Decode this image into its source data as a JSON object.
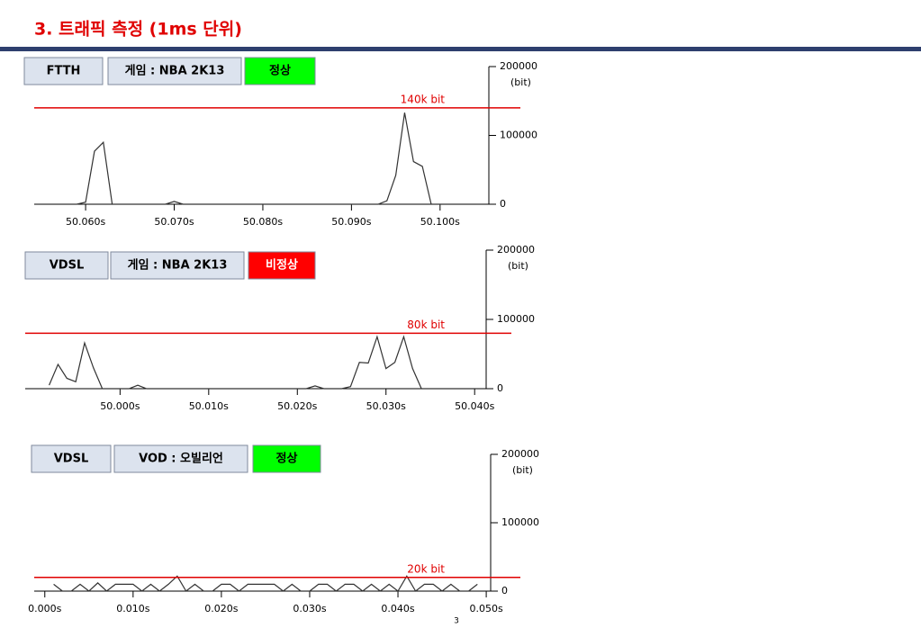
{
  "title": "3. 트래픽 측정 (1ms 단위)",
  "page_number": "3",
  "chart_data": [
    {
      "type": "line",
      "tags": [
        {
          "text": "FTTH",
          "color": "#dce3ee"
        },
        {
          "text": "게임 : NBA 2K13",
          "color": "#dce3ee"
        },
        {
          "text": "정상",
          "color": "#00ff00",
          "text_color": "#000000"
        }
      ],
      "y_label": "(bit)",
      "ylim": [
        0,
        200000
      ],
      "yticks": [
        0,
        100000,
        200000
      ],
      "xlim": [
        50.0542,
        50.1052
      ],
      "xticks": [
        {
          "value": 50.06,
          "label": "50.060s"
        },
        {
          "value": 50.07,
          "label": "50.070s"
        },
        {
          "value": 50.08,
          "label": "50.080s"
        },
        {
          "value": 50.09,
          "label": "50.090s"
        },
        {
          "value": 50.1,
          "label": "50.100s"
        }
      ],
      "threshold": {
        "value": 140000,
        "label": "140k bit",
        "color": "#e00000"
      },
      "series": [
        {
          "color": "#333333",
          "x": [
            50.055,
            50.056,
            50.057,
            50.058,
            50.059,
            50.06,
            50.061,
            50.062,
            50.063,
            50.064,
            50.065,
            50.066,
            50.067,
            50.068,
            50.069,
            50.07,
            50.071,
            50.072,
            50.073,
            50.074,
            50.075,
            50.076,
            50.077,
            50.078,
            50.079,
            50.08,
            50.081,
            50.082,
            50.083,
            50.084,
            50.085,
            50.086,
            50.087,
            50.088,
            50.089,
            50.09,
            50.091,
            50.092,
            50.093,
            50.094,
            50.095,
            50.096,
            50.097,
            50.098,
            50.099,
            50.1,
            50.101,
            50.102,
            50.103,
            50.104
          ],
          "values": [
            0,
            0,
            0,
            0,
            0,
            3000,
            77000,
            90000,
            0,
            0,
            0,
            0,
            0,
            0,
            0,
            4000,
            0,
            0,
            0,
            0,
            0,
            0,
            0,
            0,
            0,
            0,
            0,
            0,
            0,
            0,
            0,
            0,
            0,
            0,
            0,
            0,
            0,
            0,
            0,
            5000,
            42000,
            133000,
            62000,
            55000,
            0,
            0,
            0,
            0,
            0,
            0
          ]
        }
      ]
    },
    {
      "type": "line",
      "tags": [
        {
          "text": "VDSL",
          "color": "#dce3ee"
        },
        {
          "text": "게임 : NBA 2K13",
          "color": "#dce3ee"
        },
        {
          "text": "비정상",
          "color": "#ff0000",
          "text_color": "#ffffff"
        }
      ],
      "y_label": "(bit)",
      "ylim": [
        0,
        200000
      ],
      "yticks": [
        0,
        100000,
        200000
      ],
      "xlim": [
        49.9893,
        50.0413
      ],
      "xticks": [
        {
          "value": 50.0,
          "label": "50.000s"
        },
        {
          "value": 50.01,
          "label": "50.010s"
        },
        {
          "value": 50.02,
          "label": "50.020s"
        },
        {
          "value": 50.03,
          "label": "50.030s"
        },
        {
          "value": 50.04,
          "label": "50.040s"
        }
      ],
      "threshold": {
        "value": 80000,
        "label": "80k bit",
        "color": "#e00000"
      },
      "series": [
        {
          "color": "#333333",
          "x": [
            49.992,
            49.993,
            49.994,
            49.995,
            49.996,
            49.997,
            49.998,
            49.999,
            50.0,
            50.001,
            50.002,
            50.003,
            50.004,
            50.005,
            50.006,
            50.007,
            50.008,
            50.009,
            50.01,
            50.011,
            50.012,
            50.013,
            50.014,
            50.015,
            50.016,
            50.017,
            50.018,
            50.019,
            50.02,
            50.021,
            50.022,
            50.023,
            50.024,
            50.025,
            50.026,
            50.027,
            50.028,
            50.029,
            50.03,
            50.031,
            50.032,
            50.033,
            50.034,
            50.035,
            50.036,
            50.037,
            50.038,
            50.039,
            50.04
          ],
          "values": [
            5000,
            35000,
            15000,
            10000,
            66000,
            30000,
            0,
            0,
            0,
            0,
            5000,
            0,
            0,
            0,
            0,
            0,
            0,
            0,
            0,
            0,
            0,
            0,
            0,
            0,
            0,
            0,
            0,
            0,
            0,
            0,
            4000,
            0,
            0,
            0,
            3000,
            38000,
            37000,
            75000,
            29000,
            38000,
            75000,
            29000,
            0,
            0,
            0,
            0,
            0,
            0,
            0
          ]
        }
      ]
    },
    {
      "type": "line",
      "tags": [
        {
          "text": "VDSL",
          "color": "#dce3ee"
        },
        {
          "text": "VOD : 오빌리언",
          "color": "#dce3ee"
        },
        {
          "text": "정상",
          "color": "#00ff00",
          "text_color": "#000000"
        }
      ],
      "y_label": "(bit)",
      "ylim": [
        0,
        200000
      ],
      "yticks": [
        0,
        100000,
        200000
      ],
      "xlim": [
        -0.0012,
        0.0505
      ],
      "xticks": [
        {
          "value": 0,
          "label": "0.000s"
        },
        {
          "value": 0.01,
          "label": "0.010s"
        },
        {
          "value": 0.02,
          "label": "0.020s"
        },
        {
          "value": 0.03,
          "label": "0.030s"
        },
        {
          "value": 0.04,
          "label": "0.040s"
        },
        {
          "value": 0.05,
          "label": "0.050s"
        }
      ],
      "threshold": {
        "value": 20000,
        "label": "20k bit",
        "color": "#e00000"
      },
      "series": [
        {
          "color": "#333333",
          "x": [
            0.001,
            0.002,
            0.003,
            0.004,
            0.005,
            0.006,
            0.007,
            0.008,
            0.009,
            0.01,
            0.011,
            0.012,
            0.013,
            0.014,
            0.015,
            0.016,
            0.017,
            0.018,
            0.019,
            0.02,
            0.021,
            0.022,
            0.023,
            0.024,
            0.025,
            0.026,
            0.027,
            0.028,
            0.029,
            0.03,
            0.031,
            0.032,
            0.033,
            0.034,
            0.035,
            0.036,
            0.037,
            0.038,
            0.039,
            0.04,
            0.041,
            0.042,
            0.043,
            0.044,
            0.045,
            0.046,
            0.047,
            0.048,
            0.049
          ],
          "values": [
            10000,
            0,
            0,
            10000,
            0,
            12000,
            0,
            10000,
            10000,
            10000,
            0,
            10000,
            0,
            10000,
            22000,
            0,
            10000,
            0,
            0,
            10000,
            10000,
            0,
            10000,
            10000,
            10000,
            10000,
            0,
            10000,
            0,
            0,
            10000,
            10000,
            0,
            10000,
            10000,
            0,
            10000,
            0,
            10000,
            0,
            22000,
            0,
            10000,
            10000,
            0,
            10000,
            0,
            0,
            10000
          ]
        }
      ]
    }
  ]
}
